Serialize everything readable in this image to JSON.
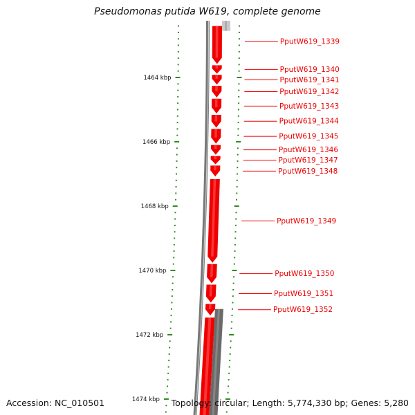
{
  "title": "Pseudomonas putida W619, complete genome",
  "footer": {
    "accession": "Accession: NC_010501",
    "summary": "Topology: circular; Length: 5,774,330 bp; Genes: 5,280"
  },
  "colors": {
    "gene": "#ee0000",
    "gene_dark": "#b00000",
    "backbone": "#777777",
    "gray_feature": "#6a6a6a",
    "tick": "#2e8b1e",
    "label": "#ee0000"
  },
  "axis": {
    "unit": "kbp",
    "range_kbp": [
      1462.4,
      1474.7
    ],
    "ticks": [
      {
        "kbp": 1464,
        "label": "1464 kbp"
      },
      {
        "kbp": 1466,
        "label": "1466 kbp"
      },
      {
        "kbp": 1468,
        "label": "1468 kbp"
      },
      {
        "kbp": 1470,
        "label": "1470 kbp"
      },
      {
        "kbp": 1472,
        "label": "1472 kbp"
      },
      {
        "kbp": 1474,
        "label": "1474 kbp"
      }
    ]
  },
  "genes": [
    {
      "name": "PputW619_1339",
      "start_kbp": 1462.4,
      "end_kbp": 1463.58,
      "strand": "-"
    },
    {
      "name": "PputW619_1340",
      "start_kbp": 1463.62,
      "end_kbp": 1463.88,
      "strand": "-"
    },
    {
      "name": "PputW619_1341",
      "start_kbp": 1463.92,
      "end_kbp": 1464.22,
      "strand": "-"
    },
    {
      "name": "PputW619_1342",
      "start_kbp": 1464.26,
      "end_kbp": 1464.62,
      "strand": "-"
    },
    {
      "name": "PputW619_1343",
      "start_kbp": 1464.66,
      "end_kbp": 1465.12,
      "strand": "-"
    },
    {
      "name": "PputW619_1344",
      "start_kbp": 1465.16,
      "end_kbp": 1465.56,
      "strand": "-"
    },
    {
      "name": "PputW619_1345",
      "start_kbp": 1465.6,
      "end_kbp": 1466.06,
      "strand": "-"
    },
    {
      "name": "PputW619_1346",
      "start_kbp": 1466.1,
      "end_kbp": 1466.4,
      "strand": "-"
    },
    {
      "name": "PputW619_1347",
      "start_kbp": 1466.44,
      "end_kbp": 1466.7,
      "strand": "-"
    },
    {
      "name": "PputW619_1348",
      "start_kbp": 1466.74,
      "end_kbp": 1467.08,
      "strand": "-"
    },
    {
      "name": "PputW619_1349",
      "start_kbp": 1467.16,
      "end_kbp": 1469.76,
      "strand": "-"
    },
    {
      "name": "PputW619_1350",
      "start_kbp": 1469.8,
      "end_kbp": 1470.4,
      "strand": "-"
    },
    {
      "name": "PputW619_1351",
      "start_kbp": 1470.44,
      "end_kbp": 1471.0,
      "strand": "-"
    },
    {
      "name": "PputW619_1352",
      "start_kbp": 1471.04,
      "end_kbp": 1471.4,
      "strand": "-"
    }
  ],
  "extra_genes": [
    {
      "start_kbp": 1471.4,
      "end_kbp": 1474.7,
      "strand": "-"
    }
  ],
  "gray_features": [
    {
      "start_kbp": 1462.4,
      "end_kbp": 1462.55,
      "strand": "+"
    },
    {
      "start_kbp": 1471.2,
      "end_kbp": 1474.7,
      "strand": "+"
    }
  ]
}
